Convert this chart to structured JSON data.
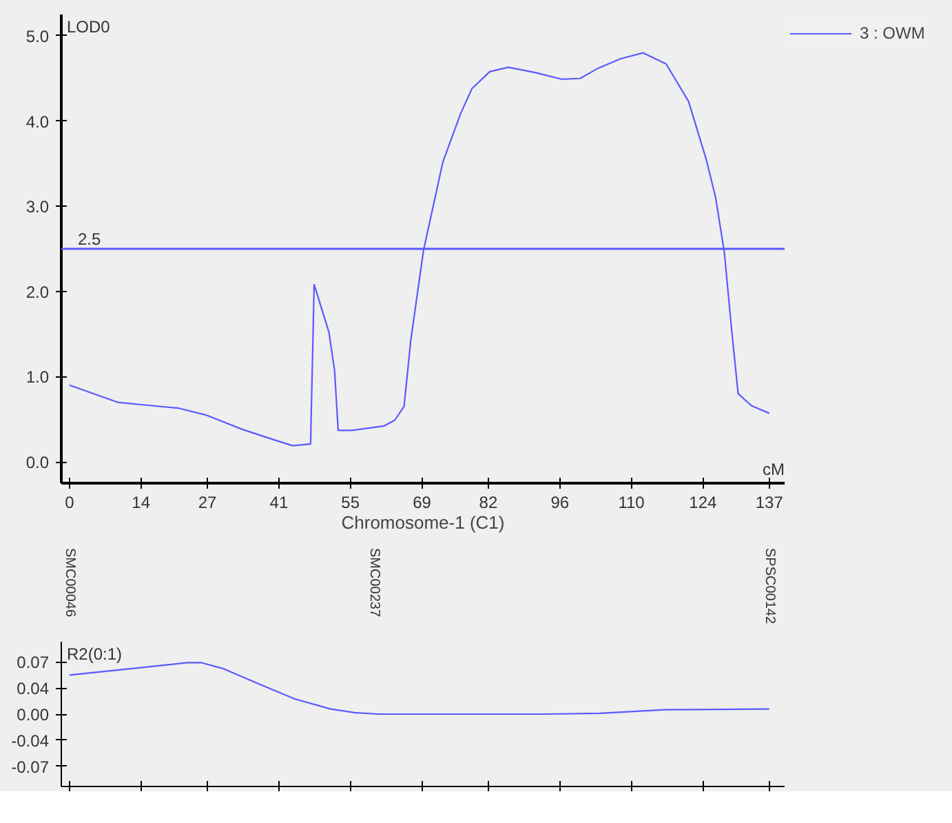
{
  "chart_data": [
    {
      "type": "line",
      "xlabel": "Chromosome-1 (C1)",
      "ylabel": "LOD0",
      "xlim": [
        -1.6,
        140
      ],
      "ylim": [
        -0.25,
        5.25
      ],
      "xticks": [
        0,
        14,
        27,
        41,
        55,
        69,
        82,
        96,
        110,
        124,
        137
      ],
      "yticks": [
        {
          "value": 0,
          "label": "0.0"
        },
        {
          "value": 1,
          "label": "1.0"
        },
        {
          "value": 2,
          "label": "2.0"
        },
        {
          "value": 3,
          "label": "3.0"
        },
        {
          "value": 4,
          "label": "4.0"
        },
        {
          "value": 5,
          "label": "5.0"
        }
      ],
      "series": [
        {
          "name": "3 : OWM",
          "color": "#5a5aff",
          "x": [
            0,
            9.4,
            14.3,
            21.4,
            26.7,
            33.9,
            41,
            43.7,
            47.2,
            47.9,
            50.8,
            51.9,
            52.6,
            55.3,
            61.5,
            63.7,
            65.5,
            66.8,
            69.3,
            73.1,
            76.6,
            78.8,
            82.3,
            85.9,
            91.1,
            96.4,
            100,
            103.5,
            107.9,
            112.3,
            116.8,
            121.2,
            124.7,
            126.5,
            128.2,
            129.6,
            130.9,
            133.5,
            137
          ],
          "values": [
            0.9,
            0.7,
            0.67,
            0.63,
            0.55,
            0.38,
            0.24,
            0.19,
            0.21,
            2.08,
            1.52,
            1.07,
            0.37,
            0.37,
            0.42,
            0.49,
            0.65,
            1.42,
            2.48,
            3.52,
            4.09,
            4.38,
            4.58,
            4.63,
            4.57,
            4.49,
            4.5,
            4.62,
            4.73,
            4.8,
            4.67,
            4.23,
            3.54,
            3.1,
            2.46,
            1.57,
            0.8,
            0.66,
            0.57
          ]
        }
      ],
      "ref_lines": [
        {
          "axis": "y",
          "value": 2.5,
          "label": "2.5",
          "color": "#5a5aff"
        }
      ],
      "annotations": [
        "cM",
        "SMC00046",
        "SMC00237",
        "SPSC00142"
      ],
      "legend": "top right",
      "grid": false
    },
    {
      "type": "line",
      "ylabel": "R2(0:1)",
      "xlim": [
        -1.6,
        140
      ],
      "ylim": [
        -0.1,
        0.1
      ],
      "tick_labels": "y",
      "xticks": [
        {
          "value": 0,
          "label": null
        },
        {
          "value": 14,
          "label": null
        },
        {
          "value": 27,
          "label": null
        },
        {
          "value": 41,
          "label": null
        },
        {
          "value": 55,
          "label": null
        },
        {
          "value": 69,
          "label": null
        },
        {
          "value": 82,
          "label": null
        },
        {
          "value": 96,
          "label": null
        },
        {
          "value": 110,
          "label": null
        },
        {
          "value": 124,
          "label": null
        },
        {
          "value": 137,
          "label": null
        }
      ],
      "yticks": [
        {
          "value": -0.072,
          "label": "-0.07"
        },
        {
          "value": -0.036,
          "label": "-0.04"
        },
        {
          "value": 0,
          "label": "0.00"
        },
        {
          "value": 0.036,
          "label": "0.04"
        },
        {
          "value": 0.072,
          "label": "0.07"
        }
      ],
      "series": [
        {
          "color": "#5a5aff",
          "x": [
            0,
            13.6,
            23,
            25.9,
            30,
            37,
            44.1,
            51.1,
            55.8,
            60.5,
            81.6,
            93.3,
            103.8,
            116.7,
            137
          ],
          "values": [
            0.054,
            0.064,
            0.071,
            0.071,
            0.063,
            0.042,
            0.021,
            0.007,
            0.002,
            0,
            0,
            0,
            0.001,
            0.006,
            0.007
          ]
        }
      ],
      "grid": false
    }
  ]
}
